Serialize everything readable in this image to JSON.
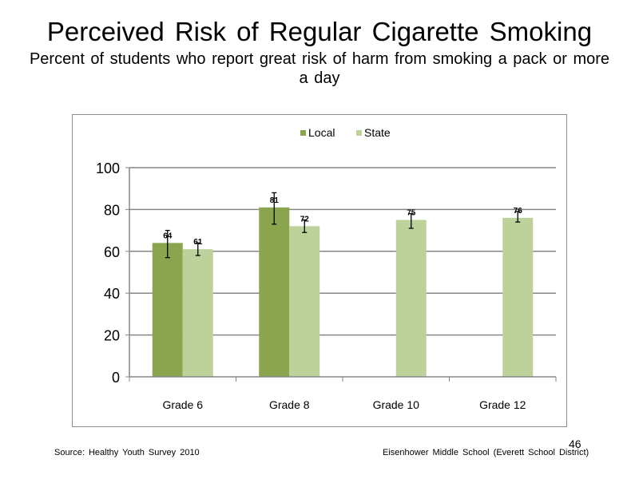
{
  "slide": {
    "title": "Perceived Risk of Regular Cigarette Smoking",
    "subtitle": "Percent of students who report great risk of harm from smoking a pack or more a day",
    "source": "Source: Healthy Youth Survey 2010",
    "school": "Eisenhower Middle School (Everett School District)",
    "page_number": "46"
  },
  "chart_data": {
    "type": "bar",
    "categories": [
      "Grade 6",
      "Grade 8",
      "Grade 10",
      "Grade 12"
    ],
    "series": [
      {
        "name": "Local",
        "color": "#8aa54e",
        "values": [
          64,
          81,
          null,
          null
        ],
        "labels": [
          "64",
          "81",
          "",
          ""
        ],
        "error": [
          [
            57,
            70
          ],
          [
            73,
            88
          ],
          null,
          null
        ]
      },
      {
        "name": "State",
        "color": "#bcd29a",
        "values": [
          61,
          72,
          75,
          76
        ],
        "labels": [
          "61",
          "72",
          "75",
          "76"
        ],
        "error": [
          [
            58,
            64
          ],
          [
            69,
            75
          ],
          [
            71,
            78
          ],
          [
            74,
            79
          ]
        ]
      }
    ],
    "ylim": [
      0,
      100
    ],
    "yticks": [
      "0",
      "20",
      "40",
      "60",
      "80",
      "100"
    ],
    "grid": true,
    "legend": "top-center"
  }
}
